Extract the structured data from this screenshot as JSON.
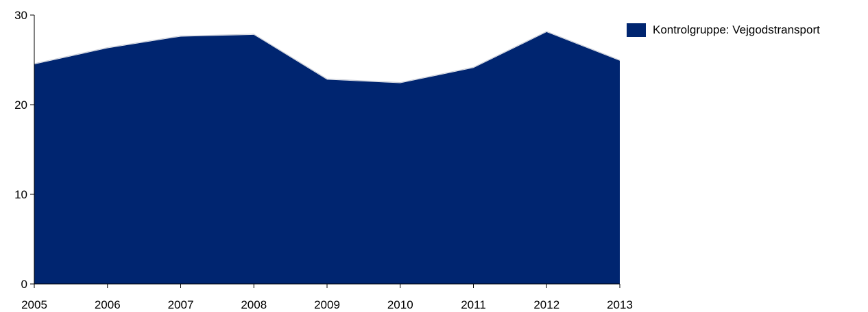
{
  "chart_data": {
    "type": "area",
    "x": [
      "2005",
      "2006",
      "2007",
      "2008",
      "2009",
      "2010",
      "2011",
      "2012",
      "2013"
    ],
    "series": [
      {
        "name": "Kontrolgruppe: Vejgodstransport",
        "values": [
          24.5,
          26.3,
          27.6,
          27.8,
          22.8,
          22.4,
          24.1,
          28.1,
          24.9
        ],
        "color": "#002570"
      }
    ],
    "yticks": [
      "0",
      "10",
      "20",
      "30"
    ],
    "ylim": [
      0,
      30
    ],
    "grid": false,
    "legend": "right"
  }
}
